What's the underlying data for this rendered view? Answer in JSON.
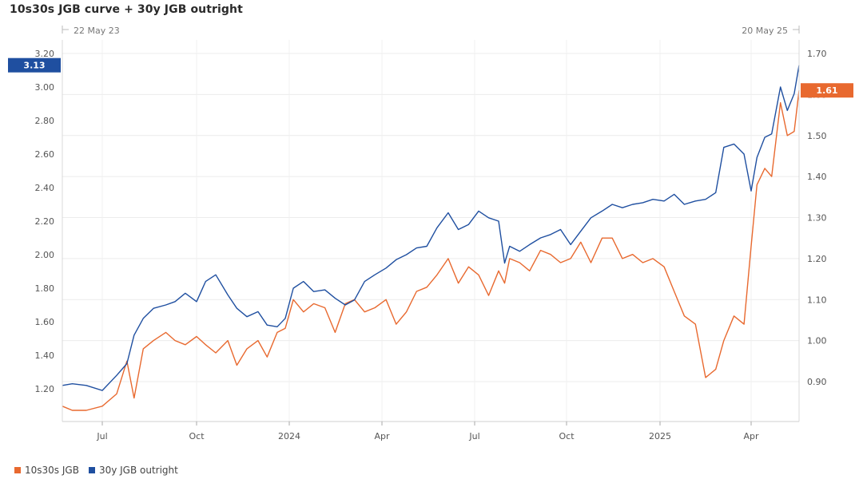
{
  "title": "10s30s JGB curve + 30y JGB outright",
  "chart_data": {
    "type": "line",
    "title": "10s30s JGB curve + 30y JGB outright",
    "range_start_label": "22 May 23",
    "range_end_label": "20 May 25",
    "x_tick_labels": [
      "Jul",
      "Oct",
      "2024",
      "Apr",
      "Jul",
      "Oct",
      "2025",
      "Apr"
    ],
    "y_left": {
      "ticks": [
        "1.20",
        "1.40",
        "1.60",
        "1.80",
        "2.00",
        "2.20",
        "2.40",
        "2.60",
        "2.80",
        "3.00",
        "3.20"
      ],
      "lim": [
        1.05,
        3.25
      ]
    },
    "y_right": {
      "ticks": [
        "0.90",
        "1.00",
        "1.10",
        "1.20",
        "1.30",
        "1.40",
        "1.50",
        "1.60",
        "1.70"
      ],
      "lim": [
        0.81,
        1.71
      ]
    },
    "grid": true,
    "legend_position": "bottom-left",
    "series": [
      {
        "name": "10s30s JGB",
        "axis": "right",
        "color": "#e8692f",
        "last_value_label": "1.61",
        "x": [
          "2023-05-22",
          "2023-06-01",
          "2023-06-15",
          "2023-07-01",
          "2023-07-15",
          "2023-07-25",
          "2023-08-01",
          "2023-08-10",
          "2023-08-20",
          "2023-09-01",
          "2023-09-10",
          "2023-09-20",
          "2023-10-01",
          "2023-10-10",
          "2023-10-20",
          "2023-11-01",
          "2023-11-10",
          "2023-11-20",
          "2023-12-01",
          "2023-12-10",
          "2023-12-20",
          "2023-12-28",
          "2024-01-05",
          "2024-01-15",
          "2024-01-25",
          "2024-02-05",
          "2024-02-15",
          "2024-02-25",
          "2024-03-05",
          "2024-03-15",
          "2024-03-25",
          "2024-04-05",
          "2024-04-15",
          "2024-04-25",
          "2024-05-05",
          "2024-05-15",
          "2024-05-25",
          "2024-06-05",
          "2024-06-15",
          "2024-06-25",
          "2024-07-05",
          "2024-07-15",
          "2024-07-25",
          "2024-07-31",
          "2024-08-05",
          "2024-08-15",
          "2024-08-25",
          "2024-09-05",
          "2024-09-15",
          "2024-09-25",
          "2024-10-05",
          "2024-10-15",
          "2024-10-25",
          "2024-11-05",
          "2024-11-15",
          "2024-11-25",
          "2024-12-05",
          "2024-12-15",
          "2024-12-25",
          "2025-01-05",
          "2025-01-15",
          "2025-01-25",
          "2025-02-05",
          "2025-02-15",
          "2025-02-25",
          "2025-03-05",
          "2025-03-15",
          "2025-03-25",
          "2025-04-01",
          "2025-04-07",
          "2025-04-15",
          "2025-04-22",
          "2025-05-01",
          "2025-05-08",
          "2025-05-15",
          "2025-05-20"
        ],
        "y": [
          0.84,
          0.83,
          0.83,
          0.84,
          0.87,
          0.95,
          0.86,
          0.98,
          1.0,
          1.02,
          1.0,
          0.99,
          1.01,
          0.99,
          0.97,
          1.0,
          0.94,
          0.98,
          1.0,
          0.96,
          1.02,
          1.03,
          1.1,
          1.07,
          1.09,
          1.08,
          1.02,
          1.09,
          1.1,
          1.07,
          1.08,
          1.1,
          1.04,
          1.07,
          1.12,
          1.13,
          1.16,
          1.2,
          1.14,
          1.18,
          1.16,
          1.11,
          1.17,
          1.14,
          1.2,
          1.19,
          1.17,
          1.22,
          1.21,
          1.19,
          1.2,
          1.24,
          1.19,
          1.25,
          1.25,
          1.2,
          1.21,
          1.19,
          1.2,
          1.18,
          1.12,
          1.06,
          1.04,
          0.91,
          0.93,
          1.0,
          1.06,
          1.04,
          1.23,
          1.38,
          1.42,
          1.4,
          1.58,
          1.5,
          1.51,
          1.61
        ]
      },
      {
        "name": "30y JGB outright",
        "axis": "left",
        "color": "#1f4fa0",
        "last_value_label": "3.13",
        "x": [
          "2023-05-22",
          "2023-06-01",
          "2023-06-15",
          "2023-07-01",
          "2023-07-15",
          "2023-07-25",
          "2023-08-01",
          "2023-08-10",
          "2023-08-20",
          "2023-09-01",
          "2023-09-10",
          "2023-09-20",
          "2023-10-01",
          "2023-10-10",
          "2023-10-20",
          "2023-11-01",
          "2023-11-10",
          "2023-11-20",
          "2023-12-01",
          "2023-12-10",
          "2023-12-20",
          "2023-12-28",
          "2024-01-05",
          "2024-01-15",
          "2024-01-25",
          "2024-02-05",
          "2024-02-15",
          "2024-02-25",
          "2024-03-05",
          "2024-03-15",
          "2024-03-25",
          "2024-04-05",
          "2024-04-15",
          "2024-04-25",
          "2024-05-05",
          "2024-05-15",
          "2024-05-25",
          "2024-06-05",
          "2024-06-15",
          "2024-06-25",
          "2024-07-05",
          "2024-07-15",
          "2024-07-25",
          "2024-07-31",
          "2024-08-05",
          "2024-08-15",
          "2024-08-25",
          "2024-09-05",
          "2024-09-15",
          "2024-09-25",
          "2024-10-05",
          "2024-10-15",
          "2024-10-25",
          "2024-11-05",
          "2024-11-15",
          "2024-11-25",
          "2024-12-05",
          "2024-12-15",
          "2024-12-25",
          "2025-01-05",
          "2025-01-15",
          "2025-01-25",
          "2025-02-05",
          "2025-02-15",
          "2025-02-25",
          "2025-03-05",
          "2025-03-15",
          "2025-03-25",
          "2025-04-01",
          "2025-04-07",
          "2025-04-15",
          "2025-04-22",
          "2025-05-01",
          "2025-05-08",
          "2025-05-15",
          "2025-05-20"
        ],
        "y": [
          1.22,
          1.23,
          1.22,
          1.19,
          1.28,
          1.35,
          1.52,
          1.62,
          1.68,
          1.7,
          1.72,
          1.77,
          1.72,
          1.84,
          1.88,
          1.76,
          1.68,
          1.63,
          1.66,
          1.58,
          1.57,
          1.62,
          1.8,
          1.84,
          1.78,
          1.79,
          1.74,
          1.7,
          1.73,
          1.84,
          1.88,
          1.92,
          1.97,
          2.0,
          2.04,
          2.05,
          2.16,
          2.25,
          2.15,
          2.18,
          2.26,
          2.22,
          2.2,
          1.95,
          2.05,
          2.02,
          2.06,
          2.1,
          2.12,
          2.15,
          2.06,
          2.14,
          2.22,
          2.26,
          2.3,
          2.28,
          2.3,
          2.31,
          2.33,
          2.32,
          2.36,
          2.3,
          2.32,
          2.33,
          2.37,
          2.64,
          2.66,
          2.6,
          2.38,
          2.58,
          2.7,
          2.72,
          3.0,
          2.86,
          2.96,
          3.13
        ]
      }
    ]
  }
}
